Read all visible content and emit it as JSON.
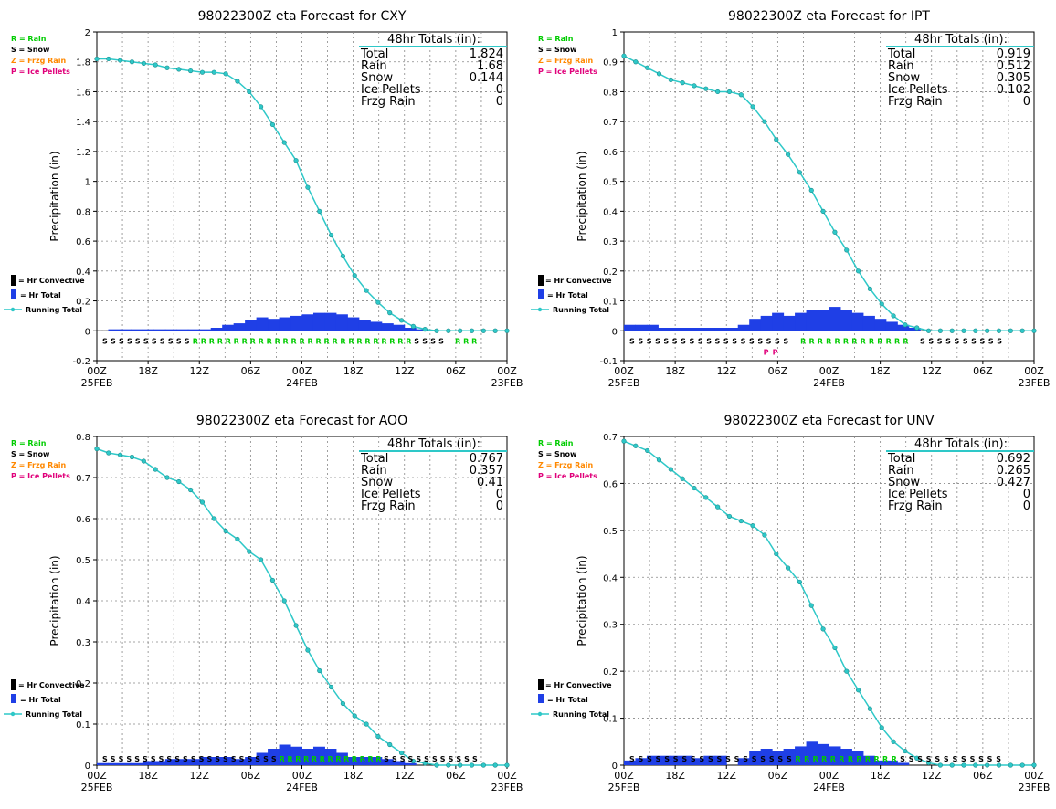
{
  "figure": {
    "legend_labels": {
      "rain": "R = Rain",
      "snow": "S = Snow",
      "frzg": "Z = Frzg Rain",
      "pellets": "P = Ice Pellets",
      "convective": "= Hr Convective",
      "total": "= Hr Total",
      "running": "Running Total"
    },
    "ylabel": "Precipitation (in)",
    "totals_header": "48hr Totals (in):",
    "totals_labels": [
      "Total",
      "Rain",
      "Snow",
      "Ice Pellets",
      "Frzg Rain"
    ],
    "colors": {
      "rain": "#00cc00",
      "snow": "#000000",
      "frzg": "#ff8800",
      "pellets": "#e0007a",
      "bars": "#1f3fe6",
      "line": "#2ec8c8",
      "header_line": "#2ec8c8"
    }
  },
  "chart_data": [
    {
      "type": "bar+line",
      "title": "98022300Z eta Forecast for CXY",
      "xlabel": "",
      "ylabel": "Precipitation (in)",
      "ylim": [
        -0.2,
        2.0
      ],
      "y_ticks": [
        "-0.2",
        "0",
        "0.2",
        "0.4",
        "0.6",
        "0.8",
        "1",
        "1.2",
        "1.4",
        "1.6",
        "1.8",
        "2"
      ],
      "x_tick_labels": [
        "00Z",
        "18Z",
        "12Z",
        "06Z",
        "00Z",
        "18Z",
        "12Z",
        "06Z",
        "00Z"
      ],
      "x_date_labels": [
        "25FEB",
        "24FEB",
        "23FEB"
      ],
      "totals": {
        "Total": "1.824",
        "Rain": "1.68",
        "Snow": "0.144",
        "Ice Pellets": "0",
        "Frzg Rain": "0"
      },
      "series": [
        {
          "name": "Running Total",
          "values": [
            1.82,
            1.82,
            1.81,
            1.8,
            1.79,
            1.78,
            1.76,
            1.75,
            1.74,
            1.73,
            1.73,
            1.72,
            1.67,
            1.6,
            1.5,
            1.38,
            1.26,
            1.14,
            0.96,
            0.8,
            0.64,
            0.5,
            0.37,
            0.27,
            0.19,
            0.12,
            0.07,
            0.03,
            0.01,
            0.0,
            0.0,
            0.0,
            0.0,
            0.0,
            0.0,
            0.0
          ]
        },
        {
          "name": "Hr Total",
          "values": [
            0.0,
            0.01,
            0.01,
            0.01,
            0.01,
            0.01,
            0.01,
            0.01,
            0.01,
            0.01,
            0.02,
            0.04,
            0.05,
            0.07,
            0.09,
            0.08,
            0.09,
            0.1,
            0.11,
            0.12,
            0.12,
            0.11,
            0.09,
            0.07,
            0.06,
            0.05,
            0.04,
            0.02,
            0.01,
            0.0,
            0.0,
            0.0,
            0.0,
            0.0,
            0.0,
            0.0
          ]
        }
      ],
      "precip_type_row": "SSSSSSSSSSSRRRRRRRRRRRRRRRRRRRRRRRRRRRSSSS RRR"
    },
    {
      "type": "bar+line",
      "title": "98022300Z eta Forecast for IPT",
      "xlabel": "",
      "ylabel": "Precipitation (in)",
      "ylim": [
        -0.1,
        1.0
      ],
      "y_ticks": [
        "-0.1",
        "0",
        "0.1",
        "0.2",
        "0.3",
        "0.4",
        "0.5",
        "0.6",
        "0.7",
        "0.8",
        "0.9",
        "1"
      ],
      "x_tick_labels": [
        "00Z",
        "18Z",
        "12Z",
        "06Z",
        "00Z",
        "18Z",
        "12Z",
        "06Z",
        "00Z"
      ],
      "x_date_labels": [
        "25FEB",
        "24FEB",
        "23FEB"
      ],
      "totals": {
        "Total": "0.919",
        "Rain": "0.512",
        "Snow": "0.305",
        "Ice Pellets": "0.102",
        "Frzg Rain": "0"
      },
      "series": [
        {
          "name": "Running Total",
          "values": [
            0.92,
            0.9,
            0.88,
            0.86,
            0.84,
            0.83,
            0.82,
            0.81,
            0.8,
            0.8,
            0.79,
            0.75,
            0.7,
            0.64,
            0.59,
            0.53,
            0.47,
            0.4,
            0.33,
            0.27,
            0.2,
            0.14,
            0.09,
            0.05,
            0.02,
            0.01,
            0.0,
            0.0,
            0.0,
            0.0,
            0.0,
            0.0,
            0.0,
            0.0,
            0.0,
            0.0
          ]
        },
        {
          "name": "Hr Total",
          "values": [
            0.02,
            0.02,
            0.02,
            0.01,
            0.01,
            0.01,
            0.01,
            0.01,
            0.01,
            0.01,
            0.02,
            0.04,
            0.05,
            0.06,
            0.05,
            0.06,
            0.07,
            0.07,
            0.08,
            0.07,
            0.06,
            0.05,
            0.04,
            0.03,
            0.02,
            0.01,
            0.0,
            0.0,
            0.0,
            0.0,
            0.0,
            0.0,
            0.0,
            0.0,
            0.0,
            0.0
          ]
        }
      ],
      "precip_type_row": "SSSSSSSSSSSSSSSSSSS RRRRRRRRRRRRR SSSSSSSSSS",
      "precip_type_row2": "P P"
    },
    {
      "type": "bar+line",
      "title": "98022300Z eta Forecast for AOO",
      "xlabel": "",
      "ylabel": "Precipitation (in)",
      "ylim": [
        0.0,
        0.8
      ],
      "y_ticks": [
        "0",
        "0.1",
        "0.2",
        "0.3",
        "0.4",
        "0.5",
        "0.6",
        "0.7",
        "0.8"
      ],
      "x_tick_labels": [
        "00Z",
        "18Z",
        "12Z",
        "06Z",
        "00Z",
        "18Z",
        "12Z",
        "06Z",
        "00Z"
      ],
      "x_date_labels": [
        "25FEB",
        "24FEB",
        "23FEB"
      ],
      "totals": {
        "Total": "0.767",
        "Rain": "0.357",
        "Snow": "0.41",
        "Ice Pellets": "0",
        "Frzg Rain": "0"
      },
      "series": [
        {
          "name": "Running Total",
          "values": [
            0.77,
            0.76,
            0.755,
            0.75,
            0.74,
            0.72,
            0.7,
            0.69,
            0.67,
            0.64,
            0.6,
            0.57,
            0.55,
            0.52,
            0.5,
            0.45,
            0.4,
            0.34,
            0.28,
            0.23,
            0.19,
            0.15,
            0.12,
            0.1,
            0.07,
            0.05,
            0.03,
            0.01,
            0.005,
            0.0,
            0.0,
            0.0,
            0.0,
            0.0,
            0.0,
            0.0
          ]
        },
        {
          "name": "Hr Total",
          "values": [
            0.005,
            0.005,
            0.005,
            0.005,
            0.01,
            0.01,
            0.015,
            0.015,
            0.015,
            0.02,
            0.02,
            0.02,
            0.015,
            0.02,
            0.03,
            0.04,
            0.05,
            0.045,
            0.04,
            0.045,
            0.04,
            0.03,
            0.02,
            0.02,
            0.02,
            0.015,
            0.01,
            0.005,
            0.0,
            0.0,
            0.0,
            0.0,
            0.0,
            0.0,
            0.0,
            0.0
          ]
        }
      ],
      "precip_type_row": "SSSSSSSSSSSSSSSSSSSSSSRRRRRRRRRRRRRSSSSSSSSSSSS"
    },
    {
      "type": "bar+line",
      "title": "98022300Z eta Forecast for UNV",
      "xlabel": "",
      "ylabel": "Precipitation (in)",
      "ylim": [
        0.0,
        0.7
      ],
      "y_ticks": [
        "0",
        "0.1",
        "0.2",
        "0.3",
        "0.4",
        "0.5",
        "0.6",
        "0.7"
      ],
      "x_tick_labels": [
        "00Z",
        "18Z",
        "12Z",
        "06Z",
        "00Z",
        "18Z",
        "12Z",
        "06Z",
        "00Z"
      ],
      "x_date_labels": [
        "25FEB",
        "24FEB",
        "23FEB"
      ],
      "totals": {
        "Total": "0.692",
        "Rain": "0.265",
        "Snow": "0.427",
        "Ice Pellets": "0",
        "Frzg Rain": "0"
      },
      "series": [
        {
          "name": "Running Total",
          "values": [
            0.69,
            0.68,
            0.67,
            0.65,
            0.63,
            0.61,
            0.59,
            0.57,
            0.55,
            0.53,
            0.52,
            0.51,
            0.49,
            0.45,
            0.42,
            0.39,
            0.34,
            0.29,
            0.25,
            0.2,
            0.16,
            0.12,
            0.08,
            0.05,
            0.03,
            0.015,
            0.005,
            0.0,
            0.0,
            0.0,
            0.0,
            0.0,
            0.0,
            0.0,
            0.0,
            0.0
          ]
        },
        {
          "name": "Hr Total",
          "values": [
            0.01,
            0.015,
            0.02,
            0.02,
            0.02,
            0.02,
            0.015,
            0.02,
            0.02,
            0.0,
            0.015,
            0.03,
            0.035,
            0.03,
            0.035,
            0.04,
            0.05,
            0.045,
            0.04,
            0.035,
            0.03,
            0.02,
            0.01,
            0.01,
            0.005,
            0.0,
            0.0,
            0.0,
            0.0,
            0.0,
            0.0,
            0.0,
            0.0,
            0.0,
            0.0,
            0.0
          ]
        }
      ],
      "precip_type_row": "SSSSSSSSSSSSSSSSSSSRRRRRRRRRRRRSSSSSSSSSSSS"
    }
  ]
}
